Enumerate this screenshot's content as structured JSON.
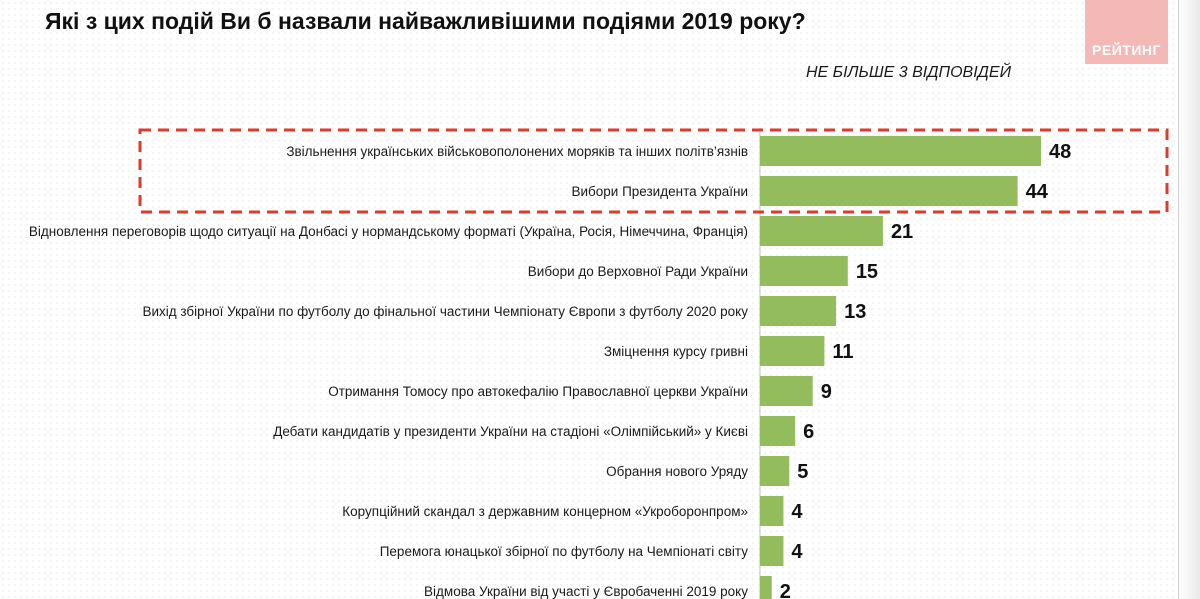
{
  "header": {
    "title": "Які з цих подій Ви б назвали найважливішими подіями 2019 року?",
    "subtitle": "НЕ БІЛЬШЕ 3 ВІДПОВІДЕЙ",
    "logo_text": "РЕЙТИНГ"
  },
  "colors": {
    "bar": "#93bd5d",
    "highlight": "#e03a2a"
  },
  "chart_data": {
    "type": "bar",
    "orientation": "horizontal",
    "categories": [
      "Звільнення українських військовополонених моряків та інших політв’язнів",
      "Вибори Президента України",
      "Відновлення переговорів щодо ситуації на Донбасі у нормандському форматі (Україна, Росія, Німеччина, Франція)",
      "Вибори до Верховної Ради України",
      "Вихід збірної України по футболу до фінальної частини Чемпіонату Європи з футболу 2020 року",
      "Зміцнення курсу гривні",
      "Отримання Томосу про автокефалію Православної церкви України",
      "Дебати кандидатів у президенти України на стадіоні «Олімпійський» у Києві",
      "Обрання нового Уряду",
      "Корупційний скандал з державним концерном «Укроборонпром»",
      "Перемога юнацької збірної по футболу на Чемпіонаті світу",
      "Відмова України від участі у Євробаченні 2019 року"
    ],
    "values": [
      48,
      44,
      21,
      15,
      13,
      11,
      9,
      6,
      5,
      4,
      4,
      2
    ],
    "xlim": [
      0,
      48
    ],
    "highlighted_categories": [
      0,
      1
    ],
    "data_labels": true,
    "grid": false,
    "legend": "none"
  }
}
